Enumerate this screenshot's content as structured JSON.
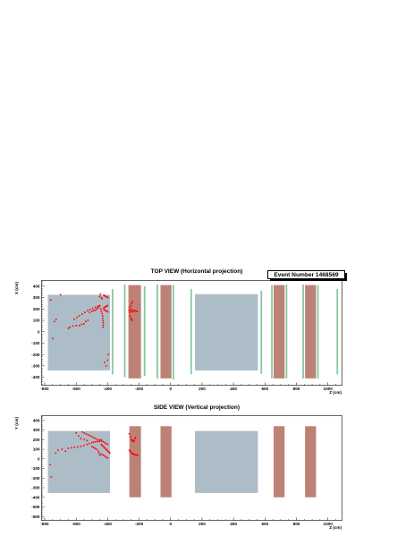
{
  "event_label": "Event Number 1468569",
  "colors": {
    "tracker": "#adbdc8",
    "magnet": "#bc8277",
    "plane": "#86c79c",
    "hit": "#ff0000",
    "frame": "#000000"
  },
  "chart_data": [
    {
      "type": "scatter",
      "id": "top",
      "title": "TOP VIEW (Horizontal projection)",
      "xlabel": "Z (cm)",
      "ylabel": "X (cm)",
      "xlim": [
        -820,
        1090
      ],
      "ylim": [
        -470,
        450
      ],
      "xticks": [
        -800,
        -600,
        -400,
        -200,
        0,
        200,
        400,
        600,
        800,
        1000
      ],
      "yticks": [
        -400,
        -300,
        -200,
        -100,
        0,
        100,
        200,
        300,
        400
      ],
      "detectors": [
        {
          "kind": "tracker",
          "z": [
            -780,
            -385
          ],
          "x": [
            -340,
            325
          ]
        },
        {
          "kind": "plane",
          "z": [
            -374,
            -364
          ],
          "x": [
            -375,
            375
          ]
        },
        {
          "kind": "plane",
          "z": [
            -296,
            -286
          ],
          "x": [
            -400,
            415
          ]
        },
        {
          "kind": "magnet",
          "z": [
            -268,
            -188
          ],
          "x": [
            -410,
            410
          ]
        },
        {
          "kind": "plane",
          "z": [
            -170,
            -160
          ],
          "x": [
            -390,
            400
          ]
        },
        {
          "kind": "plane",
          "z": [
            -89,
            -79
          ],
          "x": [
            -410,
            415
          ]
        },
        {
          "kind": "magnet",
          "z": [
            -64,
            6
          ],
          "x": [
            -410,
            410
          ]
        },
        {
          "kind": "plane",
          "z": [
            13,
            23
          ],
          "x": [
            -420,
            410
          ]
        },
        {
          "kind": "plane",
          "z": [
            126,
            136
          ],
          "x": [
            -375,
            375
          ]
        },
        {
          "kind": "tracker",
          "z": [
            155,
            555
          ],
          "x": [
            -340,
            330
          ]
        },
        {
          "kind": "plane",
          "z": [
            572,
            582
          ],
          "x": [
            -370,
            360
          ]
        },
        {
          "kind": "plane",
          "z": [
            639,
            649
          ],
          "x": [
            -410,
            410
          ]
        },
        {
          "kind": "magnet",
          "z": [
            655,
            725
          ],
          "x": [
            -410,
            410
          ]
        },
        {
          "kind": "plane",
          "z": [
            732,
            742
          ],
          "x": [
            -410,
            415
          ]
        },
        {
          "kind": "plane",
          "z": [
            838,
            848
          ],
          "x": [
            -410,
            415
          ]
        },
        {
          "kind": "magnet",
          "z": [
            855,
            925
          ],
          "x": [
            -410,
            410
          ]
        },
        {
          "kind": "plane",
          "z": [
            932,
            942
          ],
          "x": [
            -410,
            410
          ]
        },
        {
          "kind": "plane",
          "z": [
            1055,
            1065
          ],
          "x": [
            -375,
            375
          ]
        }
      ],
      "hits": [
        [
          -762,
          280
        ],
        [
          -748,
          -60
        ],
        [
          -738,
          90
        ],
        [
          -728,
          110
        ],
        [
          -700,
          325
        ],
        [
          -650,
          30
        ],
        [
          -640,
          40
        ],
        [
          -620,
          50
        ],
        [
          -600,
          55
        ],
        [
          -580,
          55
        ],
        [
          -565,
          65
        ],
        [
          -550,
          70
        ],
        [
          -540,
          90
        ],
        [
          -525,
          100
        ],
        [
          -515,
          170
        ],
        [
          -500,
          180
        ],
        [
          -488,
          185
        ],
        [
          -478,
          190
        ],
        [
          -470,
          200
        ],
        [
          -462,
          210
        ],
        [
          -456,
          220
        ],
        [
          -450,
          230
        ],
        [
          -444,
          200
        ],
        [
          -440,
          180
        ],
        [
          -436,
          160
        ],
        [
          -432,
          140
        ],
        [
          -612,
          110
        ],
        [
          -595,
          125
        ],
        [
          -580,
          140
        ],
        [
          -562,
          155
        ],
        [
          -545,
          170
        ],
        [
          -528,
          185
        ],
        [
          -512,
          195
        ],
        [
          -495,
          205
        ],
        [
          -478,
          215
        ],
        [
          -462,
          225
        ],
        [
          -452,
          310
        ],
        [
          -446,
          330
        ],
        [
          -440,
          300
        ],
        [
          -436,
          290
        ],
        [
          -432,
          120
        ],
        [
          -430,
          100
        ],
        [
          -428,
          80
        ],
        [
          -428,
          60
        ],
        [
          -430,
          40
        ],
        [
          -424,
          210
        ],
        [
          -418,
          215
        ],
        [
          -412,
          220
        ],
        [
          -406,
          225
        ],
        [
          -400,
          230
        ],
        [
          -424,
          195
        ],
        [
          -418,
          190
        ],
        [
          -412,
          185
        ],
        [
          -406,
          180
        ],
        [
          -400,
          175
        ],
        [
          -424,
          320
        ],
        [
          -418,
          315
        ],
        [
          -412,
          310
        ],
        [
          -404,
          305
        ],
        [
          -398,
          300
        ],
        [
          -420,
          -270
        ],
        [
          -410,
          -300
        ],
        [
          -400,
          -250
        ],
        [
          -395,
          -200
        ],
        [
          -265,
          190
        ],
        [
          -260,
          170
        ],
        [
          -255,
          185
        ],
        [
          -250,
          200
        ],
        [
          -246,
          180
        ],
        [
          -240,
          175
        ],
        [
          -235,
          190
        ],
        [
          -228,
          185
        ],
        [
          -220,
          180
        ],
        [
          -212,
          178
        ],
        [
          -258,
          140
        ],
        [
          -252,
          120
        ],
        [
          -248,
          110
        ],
        [
          -244,
          100
        ],
        [
          -252,
          230
        ],
        [
          -248,
          250
        ],
        [
          -242,
          265
        ],
        [
          -262,
          215
        ]
      ]
    },
    {
      "type": "scatter",
      "id": "side",
      "title": "SIDE VIEW (Vertical projection)",
      "xlabel": "Z (cm)",
      "ylabel": "Y (cm)",
      "xlim": [
        -820,
        1090
      ],
      "ylim": [
        -640,
        450
      ],
      "xticks": [
        -800,
        -600,
        -400,
        -200,
        0,
        200,
        400,
        600,
        800,
        1000
      ],
      "yticks": [
        -600,
        -500,
        -400,
        -300,
        -200,
        -100,
        0,
        100,
        200,
        300,
        400
      ],
      "detectors": [
        {
          "kind": "tracker",
          "z": [
            -780,
            -385
          ],
          "x": [
            -355,
            290
          ]
        },
        {
          "kind": "magnet",
          "z": [
            -262,
            -188
          ],
          "x": [
            -400,
            340
          ]
        },
        {
          "kind": "magnet",
          "z": [
            -64,
            6
          ],
          "x": [
            -400,
            340
          ]
        },
        {
          "kind": "tracker",
          "z": [
            155,
            555
          ],
          "x": [
            -355,
            290
          ]
        },
        {
          "kind": "magnet",
          "z": [
            655,
            725
          ],
          "x": [
            -400,
            340
          ]
        },
        {
          "kind": "magnet",
          "z": [
            855,
            925
          ],
          "x": [
            -400,
            340
          ]
        }
      ],
      "hits": [
        [
          -765,
          -60
        ],
        [
          -758,
          -190
        ],
        [
          -730,
          60
        ],
        [
          -715,
          90
        ],
        [
          -690,
          100
        ],
        [
          -668,
          80
        ],
        [
          -650,
          110
        ],
        [
          -630,
          115
        ],
        [
          -610,
          120
        ],
        [
          -590,
          125
        ],
        [
          -570,
          130
        ],
        [
          -550,
          140
        ],
        [
          -530,
          150
        ],
        [
          -515,
          160
        ],
        [
          -500,
          170
        ],
        [
          -488,
          175
        ],
        [
          -476,
          178
        ],
        [
          -464,
          180
        ],
        [
          -452,
          182
        ],
        [
          -440,
          185
        ],
        [
          -560,
          280
        ],
        [
          -548,
          270
        ],
        [
          -536,
          260
        ],
        [
          -524,
          250
        ],
        [
          -512,
          240
        ],
        [
          -500,
          230
        ],
        [
          -488,
          220
        ],
        [
          -476,
          210
        ],
        [
          -464,
          200
        ],
        [
          -452,
          195
        ],
        [
          -600,
          270
        ],
        [
          -585,
          240
        ],
        [
          -570,
          210
        ],
        [
          -548,
          200
        ],
        [
          -530,
          190
        ],
        [
          -500,
          130
        ],
        [
          -490,
          120
        ],
        [
          -480,
          110
        ],
        [
          -470,
          100
        ],
        [
          -440,
          150
        ],
        [
          -434,
          140
        ],
        [
          -428,
          130
        ],
        [
          -422,
          120
        ],
        [
          -416,
          110
        ],
        [
          -410,
          100
        ],
        [
          -404,
          90
        ],
        [
          -398,
          80
        ],
        [
          -392,
          70
        ],
        [
          -386,
          60
        ],
        [
          -440,
          200
        ],
        [
          -430,
          180
        ],
        [
          -420,
          170
        ],
        [
          -410,
          160
        ],
        [
          -400,
          150
        ],
        [
          -440,
          50
        ],
        [
          -430,
          40
        ],
        [
          -420,
          30
        ],
        [
          -410,
          20
        ],
        [
          -400,
          10
        ],
        [
          -460,
          80
        ],
        [
          -455,
          60
        ],
        [
          -450,
          40
        ],
        [
          -262,
          260
        ],
        [
          -255,
          230
        ],
        [
          -250,
          200
        ],
        [
          -245,
          190
        ],
        [
          -240,
          195
        ],
        [
          -236,
          180
        ],
        [
          -230,
          185
        ],
        [
          -226,
          210
        ],
        [
          -222,
          220
        ],
        [
          -262,
          90
        ],
        [
          -258,
          80
        ],
        [
          -254,
          70
        ],
        [
          -248,
          60
        ],
        [
          -242,
          55
        ],
        [
          -236,
          50
        ],
        [
          -230,
          45
        ],
        [
          -222,
          42
        ],
        [
          -215,
          40
        ],
        [
          -208,
          38
        ]
      ]
    }
  ]
}
